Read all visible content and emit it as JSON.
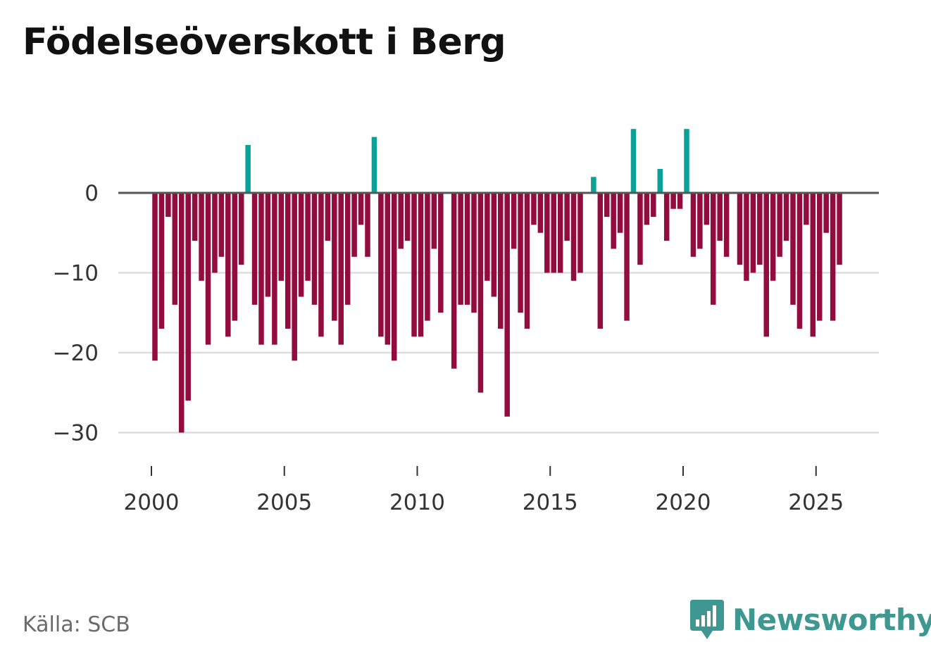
{
  "title": "Födelseöverskott i Berg",
  "source": "Källa: SCB",
  "brand": {
    "name": "Newsworthy",
    "icon": "newsworthy-logo-icon"
  },
  "colors": {
    "positive": "#0ca196",
    "negative": "#930c3e",
    "zero_line": "#555555",
    "grid": "#dddddd",
    "brand": "#3e9790"
  },
  "chart_data": {
    "type": "bar",
    "title": "Födelseöverskott i Berg",
    "xlabel": "",
    "ylabel": "",
    "frequency": "quarterly",
    "start": {
      "year": 2000,
      "quarter": 1
    },
    "ylim": [
      -35,
      10
    ],
    "yticks": [
      0,
      -10,
      -20,
      -30
    ],
    "ytick_labels": [
      "0",
      "−10",
      "−20",
      "−30"
    ],
    "xticks": [
      2000,
      2005,
      2010,
      2015,
      2020,
      2025
    ],
    "xtick_labels": [
      "2000",
      "2005",
      "2010",
      "2015",
      "2020",
      "2025"
    ],
    "values": [
      -21,
      -17,
      -3,
      -14,
      -30,
      -26,
      -6,
      -11,
      -19,
      -10,
      -8,
      -18,
      -16,
      -9,
      6,
      -14,
      -19,
      -13,
      -19,
      -11,
      -17,
      -21,
      -13,
      -11,
      -14,
      -18,
      -6,
      -16,
      -19,
      -14,
      -8,
      -4,
      -8,
      7,
      -18,
      -19,
      -21,
      -7,
      -6,
      -18,
      -18,
      -16,
      -7,
      -15,
      0,
      -22,
      -14,
      -14,
      -15,
      -25,
      -11,
      -13,
      -17,
      -28,
      -7,
      -15,
      -17,
      -4,
      -5,
      -10,
      -10,
      -10,
      -6,
      -11,
      -10,
      0,
      2,
      -17,
      -3,
      -7,
      -5,
      -16,
      8,
      -9,
      -4,
      -3,
      3,
      -6,
      -2,
      -2,
      8,
      -8,
      -7,
      -4,
      -14,
      -6,
      -8,
      0,
      -9,
      -11,
      -10,
      -9,
      -18,
      -11,
      -8,
      -6,
      -14,
      -17,
      -4,
      -18,
      -16,
      -5,
      -16,
      -9
    ]
  }
}
